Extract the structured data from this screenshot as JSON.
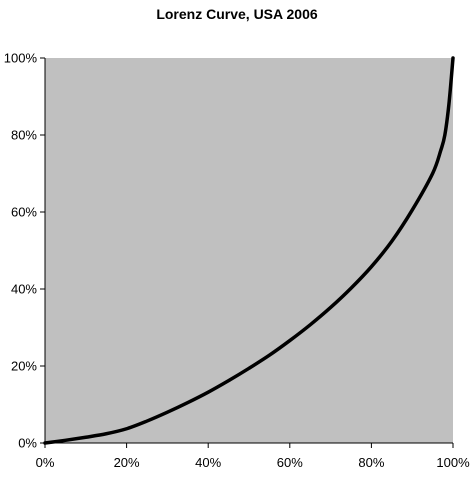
{
  "chart_data": {
    "type": "line",
    "title": "Lorenz Curve, USA 2006",
    "xlabel": "",
    "ylabel": "",
    "xlim": [
      0,
      100
    ],
    "ylim": [
      0,
      100
    ],
    "x_ticks": [
      "0%",
      "20%",
      "40%",
      "60%",
      "80%",
      "100%"
    ],
    "y_ticks": [
      "0%",
      "20%",
      "40%",
      "60%",
      "80%",
      "100%"
    ],
    "grid": false,
    "legend": "none",
    "plot_background": "#c0c0c0",
    "series": [
      {
        "color": "#000000",
        "x": [
          0,
          5,
          10,
          15,
          20,
          25,
          30,
          35,
          40,
          45,
          50,
          55,
          60,
          65,
          70,
          75,
          80,
          85,
          90,
          95,
          97,
          98,
          99,
          100
        ],
        "y": [
          0,
          0.7,
          1.5,
          2.4,
          3.7,
          5.7,
          8,
          10.5,
          13.2,
          16.2,
          19.4,
          22.8,
          26.6,
          30.7,
          35.2,
          40.2,
          45.8,
          52.4,
          60.5,
          70,
          76,
          80,
          88,
          100
        ]
      }
    ]
  }
}
